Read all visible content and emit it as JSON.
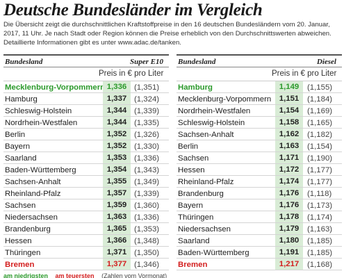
{
  "title": "Deutsche Bundesländer im Vergleich",
  "intro": "Die Übersicht zeigt die durchschnittlichen Kraftstoffpreise in den 16 deutschen Bundesländern vom 20. Januar, 2017, 11 Uhr. Je nach Stadt oder Region können die Preise erheblich von den Durchschnittswerten abweichen. Detaillierte Informationen gibt es unter www.adac.de/tanken.",
  "colors": {
    "cheapest": "#2c9a2c",
    "most_expensive": "#d31f1f",
    "price_column_bg": "#d9ecd6"
  },
  "tables": [
    {
      "col_name": "Bundesland",
      "col_fuel": "Super E10",
      "subheader": "Preis in € pro Liter",
      "rows": [
        {
          "name": "Mecklenburg-Vorpommern",
          "price": "1,336",
          "prev": "(1,351)",
          "mark": "cheap"
        },
        {
          "name": "Hamburg",
          "price": "1,337",
          "prev": "(1,324)",
          "mark": ""
        },
        {
          "name": "Schleswig-Holstein",
          "price": "1,344",
          "prev": "(1,339)",
          "mark": ""
        },
        {
          "name": "Nordrhein-Westfalen",
          "price": "1,344",
          "prev": "(1,335)",
          "mark": ""
        },
        {
          "name": "Berlin",
          "price": "1,352",
          "prev": "(1,326)",
          "mark": ""
        },
        {
          "name": "Bayern",
          "price": "1,352",
          "prev": "(1,330)",
          "mark": ""
        },
        {
          "name": "Saarland",
          "price": "1,353",
          "prev": "(1,336)",
          "mark": ""
        },
        {
          "name": "Baden-Württemberg",
          "price": "1,354",
          "prev": "(1,343)",
          "mark": ""
        },
        {
          "name": "Sachsen-Anhalt",
          "price": "1,355",
          "prev": "(1,349)",
          "mark": ""
        },
        {
          "name": "Rheinland-Pfalz",
          "price": "1,357",
          "prev": "(1,339)",
          "mark": ""
        },
        {
          "name": "Sachsen",
          "price": "1,359",
          "prev": "(1,360)",
          "mark": ""
        },
        {
          "name": "Niedersachsen",
          "price": "1,363",
          "prev": "(1,336)",
          "mark": ""
        },
        {
          "name": "Brandenburg",
          "price": "1,365",
          "prev": "(1,353)",
          "mark": ""
        },
        {
          "name": "Hessen",
          "price": "1,366",
          "prev": "(1,348)",
          "mark": ""
        },
        {
          "name": "Thüringen",
          "price": "1,371",
          "prev": "(1,350)",
          "mark": ""
        },
        {
          "name": "Bremen",
          "price": "1,377",
          "prev": "(1,346)",
          "mark": "expensive"
        }
      ]
    },
    {
      "col_name": "Bundesland",
      "col_fuel": "Diesel",
      "subheader": "Preis in € pro Liter",
      "rows": [
        {
          "name": "Hamburg",
          "price": "1,149",
          "prev": "(1,155)",
          "mark": "cheap"
        },
        {
          "name": "Mecklenburg-Vorpommern",
          "price": "1,151",
          "prev": "(1,184)",
          "mark": ""
        },
        {
          "name": "Nordrhein-Westfalen",
          "price": "1,154",
          "prev": "(1,169)",
          "mark": ""
        },
        {
          "name": "Schleswig-Holstein",
          "price": "1,158",
          "prev": "(1,165)",
          "mark": ""
        },
        {
          "name": "Sachsen-Anhalt",
          "price": "1,162",
          "prev": "(1,182)",
          "mark": ""
        },
        {
          "name": "Berlin",
          "price": "1,163",
          "prev": "(1,154)",
          "mark": ""
        },
        {
          "name": "Sachsen",
          "price": "1,171",
          "prev": "(1,190)",
          "mark": ""
        },
        {
          "name": "Hessen",
          "price": "1,172",
          "prev": "(1,177)",
          "mark": ""
        },
        {
          "name": "Rheinland-Pfalz",
          "price": "1,174",
          "prev": "(1,177)",
          "mark": ""
        },
        {
          "name": "Brandenburg",
          "price": "1,176",
          "prev": "(1,118)",
          "mark": ""
        },
        {
          "name": "Bayern",
          "price": "1,176",
          "prev": "(1,173)",
          "mark": ""
        },
        {
          "name": "Thüringen",
          "price": "1,178",
          "prev": "(1,174)",
          "mark": ""
        },
        {
          "name": "Niedersachsen",
          "price": "1,179",
          "prev": "(1,163)",
          "mark": ""
        },
        {
          "name": "Saarland",
          "price": "1,180",
          "prev": "(1,185)",
          "mark": ""
        },
        {
          "name": "Baden-Württemberg",
          "price": "1,191",
          "prev": "(1,185)",
          "mark": ""
        },
        {
          "name": "Bremen",
          "price": "1,217",
          "prev": "(1,168)",
          "mark": "expensive"
        }
      ]
    }
  ],
  "legend": {
    "cheapest_label": "am niedrigsten",
    "most_expensive_label": "am teuersten",
    "note": "(Zahlen vom Vormonat)"
  }
}
